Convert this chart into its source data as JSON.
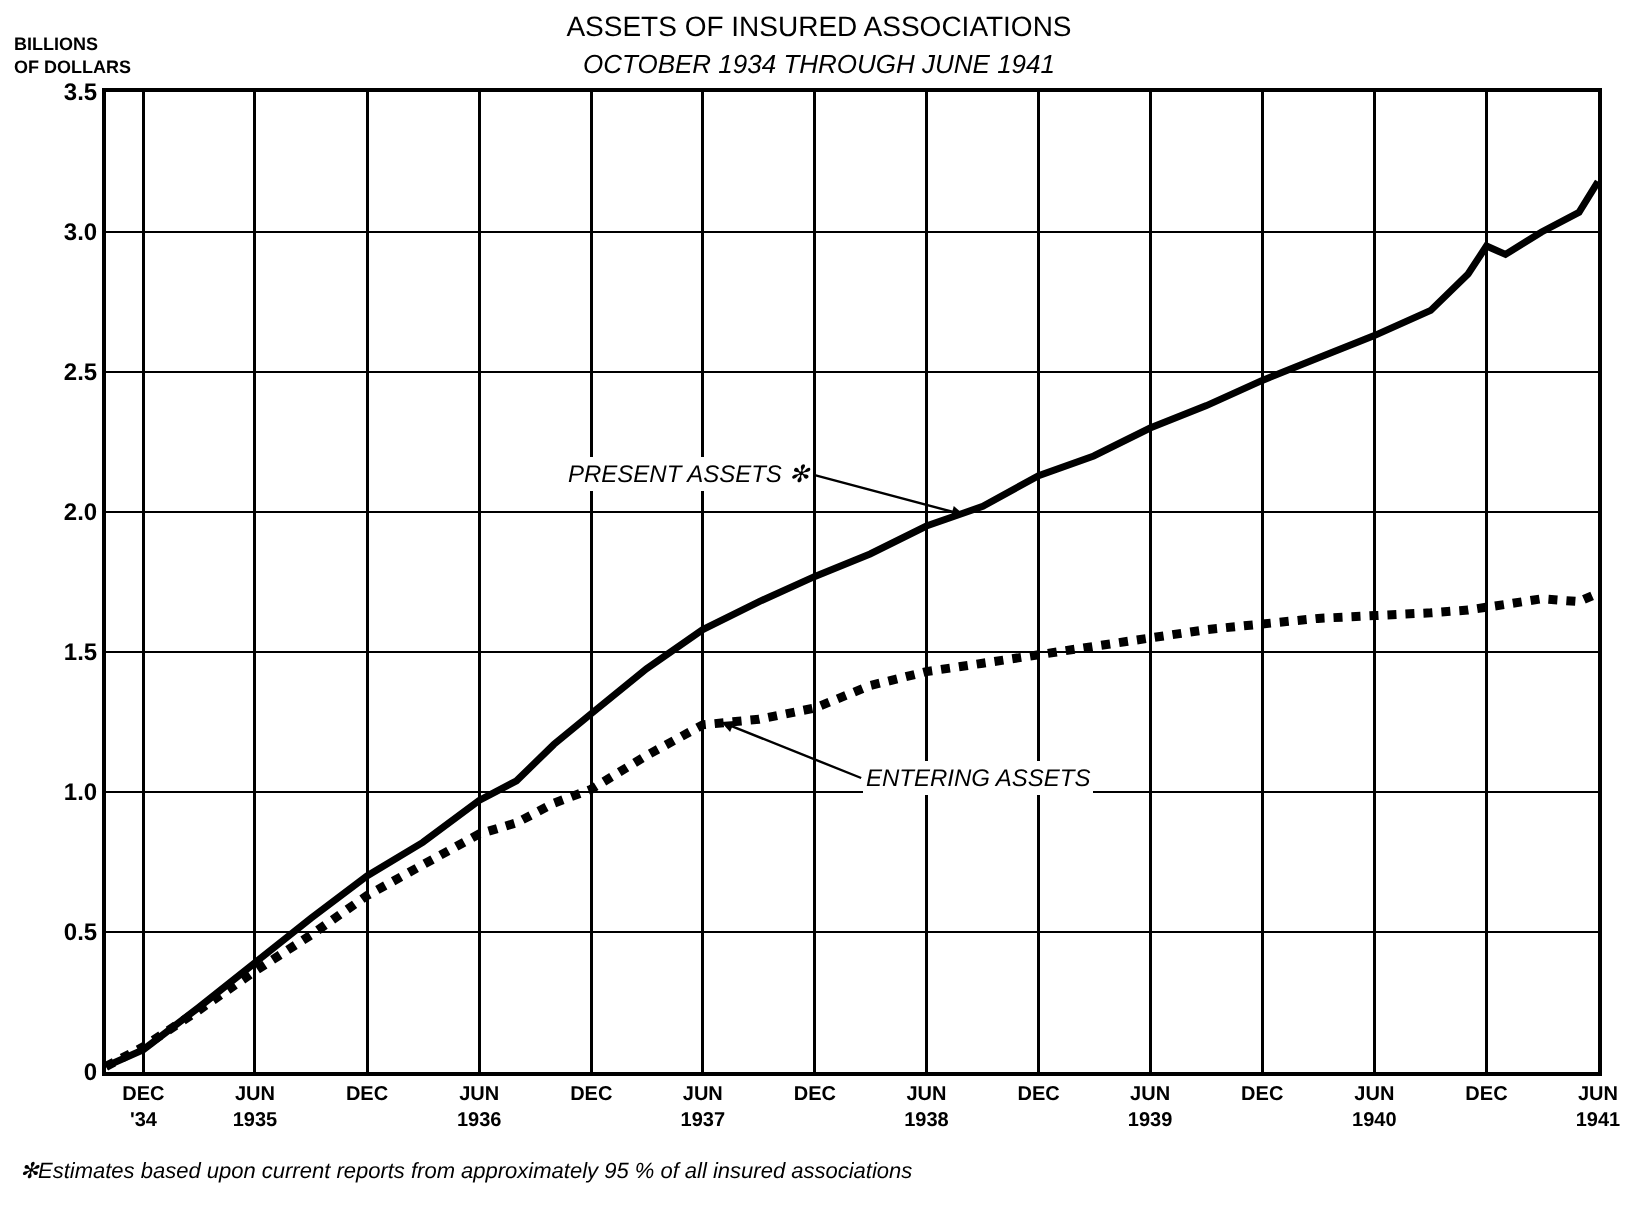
{
  "chart_data": {
    "type": "line",
    "title": "ASSETS OF INSURED ASSOCIATIONS",
    "subtitle": "OCTOBER 1934 THROUGH JUNE 1941",
    "ylabel": "BILLIONS OF DOLLARS",
    "x": [
      "1934-10",
      "1934-12",
      "1935-03",
      "1935-06",
      "1935-09",
      "1935-12",
      "1936-03",
      "1936-06",
      "1936-08",
      "1936-10",
      "1936-12",
      "1937-03",
      "1937-06",
      "1937-09",
      "1937-12",
      "1938-03",
      "1938-06",
      "1938-09",
      "1938-12",
      "1939-03",
      "1939-06",
      "1939-09",
      "1939-12",
      "1940-03",
      "1940-06",
      "1940-09",
      "1940-11",
      "1940-12",
      "1941-01",
      "1941-03",
      "1941-05",
      "1941-06"
    ],
    "series": [
      {
        "name": null,
        "color": "#000000",
        "line_style": "solid",
        "values": [
          0.02,
          0.08,
          0.23,
          0.39,
          0.55,
          0.7,
          0.82,
          0.97,
          1.04,
          1.17,
          1.28,
          1.44,
          1.58,
          1.68,
          1.77,
          1.85,
          1.95,
          2.02,
          2.13,
          2.2,
          2.3,
          2.38,
          2.47,
          2.55,
          2.63,
          2.72,
          2.85,
          2.95,
          2.92,
          3.0,
          3.07,
          3.18
        ]
      },
      {
        "name": null,
        "color": "#000000",
        "line_style": "dotted",
        "values": [
          0.02,
          0.09,
          0.22,
          0.36,
          0.49,
          0.63,
          0.74,
          0.85,
          0.89,
          0.96,
          1.01,
          1.13,
          1.24,
          1.26,
          1.3,
          1.38,
          1.43,
          1.46,
          1.49,
          1.52,
          1.55,
          1.58,
          1.6,
          1.62,
          1.63,
          1.64,
          1.65,
          1.66,
          1.67,
          1.69,
          1.68,
          1.71
        ]
      }
    ],
    "xlim": [
      "1934-10",
      "1941-06"
    ],
    "xticks": [
      {
        "value": "1934-12",
        "label": "DEC\n'34"
      },
      {
        "value": "1935-06",
        "label": "JUN\n1935"
      },
      {
        "value": "1935-12",
        "label": "DEC"
      },
      {
        "value": "1936-06",
        "label": "JUN\n1936"
      },
      {
        "value": "1936-12",
        "label": "DEC"
      },
      {
        "value": "1937-06",
        "label": "JUN\n1937"
      },
      {
        "value": "1937-12",
        "label": "DEC"
      },
      {
        "value": "1938-06",
        "label": "JUN\n1938"
      },
      {
        "value": "1938-12",
        "label": "DEC"
      },
      {
        "value": "1939-06",
        "label": "JUN\n1939"
      },
      {
        "value": "1939-12",
        "label": "DEC"
      },
      {
        "value": "1940-06",
        "label": "JUN\n1940"
      },
      {
        "value": "1940-12",
        "label": "DEC"
      },
      {
        "value": "1941-06",
        "label": "JUN\n1941"
      }
    ],
    "ylim": [
      0,
      3.5
    ],
    "yticks": [
      0,
      0.5,
      {
        "value": 1,
        "label": "1.0"
      },
      1.5,
      {
        "value": 2,
        "label": "2.0"
      },
      2.5,
      {
        "value": 3,
        "label": "3.0"
      },
      3.5
    ],
    "grid": true,
    "marker": "none",
    "annotations": [
      {
        "text": "PRESENT ASSETS ✻",
        "x": "1938-08",
        "y": 1.99
      },
      {
        "text": "ENTERING ASSETS",
        "x": "1937-07",
        "y": 1.25
      },
      "✻Estimates based upon current reports from approximately 95 % of all insured associations"
    ]
  }
}
